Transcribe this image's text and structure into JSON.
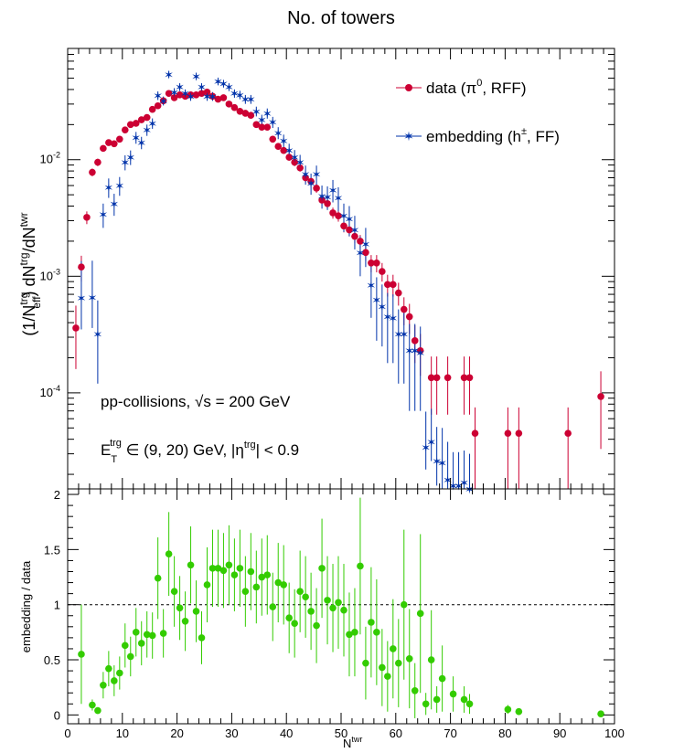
{
  "title": "No. of towers",
  "colors": {
    "data": "#cc0033",
    "embedding": "#0033aa",
    "ratio": "#33cc00"
  },
  "chart_data": [
    {
      "type": "scatter",
      "title": "No. of towers",
      "xlabel_parts": {
        "base": "N",
        "sup": "twr"
      },
      "ylabel_parts": {
        "a": "(1/N",
        "a_sup": "trg",
        "a_sub": "eff",
        "b": ") dN",
        "b_sup": "trg",
        "c": "/dN",
        "c_sup": "twr"
      },
      "xlim": [
        0,
        100
      ],
      "ylim": [
        1.5e-05,
        0.09
      ],
      "yscale": "log",
      "y_ticks": [
        {
          "base": "10",
          "exp": "-2"
        },
        {
          "base": "10",
          "exp": "-3"
        },
        {
          "base": "10",
          "exp": "-4"
        }
      ],
      "legend_position": "top-right",
      "annotations": {
        "line1_prefix": "pp-collisions, ",
        "line1_sqrt": "√s",
        "line1_suffix": " = 200 GeV",
        "line2_a": "E",
        "line2_a_sub": "T",
        "line2_a_sup": "trg",
        "line2_b": " ∈ (9, 20) GeV, |η",
        "line2_b_sup": "trg",
        "line2_c": "| < 0.9"
      },
      "series": [
        {
          "name": "data (π⁰, RFF)",
          "legend_parts": {
            "a": "data (π",
            "sup": "0",
            "b": ", RFF)"
          },
          "x": [
            1.5,
            2.5,
            3.5,
            4.5,
            5.5,
            6.5,
            7.5,
            8.5,
            9.5,
            10.5,
            11.5,
            12.5,
            13.5,
            14.5,
            15.5,
            16.5,
            17.5,
            18.5,
            19.5,
            20.5,
            21.5,
            22.5,
            23.5,
            24.5,
            25.5,
            26.5,
            27.5,
            28.5,
            29.5,
            30.5,
            31.5,
            32.5,
            33.5,
            34.5,
            35.5,
            36.5,
            37.5,
            38.5,
            39.5,
            40.5,
            41.5,
            42.5,
            43.5,
            44.5,
            45.5,
            46.5,
            47.5,
            48.5,
            49.5,
            50.5,
            51.5,
            52.5,
            53.5,
            54.5,
            55.5,
            56.5,
            57.5,
            58.5,
            59.5,
            60.5,
            61.5,
            62.5,
            63.5,
            64.5,
            66.5,
            67.5,
            69.5,
            72.5,
            73.5,
            74.5,
            80.5,
            82.5,
            91.5,
            97.5
          ],
          "y": [
            0.00036,
            0.0012,
            0.0032,
            0.0078,
            0.0095,
            0.0125,
            0.014,
            0.0137,
            0.015,
            0.018,
            0.02,
            0.0205,
            0.022,
            0.023,
            0.027,
            0.029,
            0.032,
            0.037,
            0.034,
            0.036,
            0.035,
            0.036,
            0.036,
            0.037,
            0.038,
            0.035,
            0.033,
            0.034,
            0.03,
            0.028,
            0.026,
            0.025,
            0.024,
            0.02,
            0.019,
            0.019,
            0.015,
            0.013,
            0.012,
            0.0105,
            0.0095,
            0.0085,
            0.007,
            0.0065,
            0.0057,
            0.0045,
            0.0042,
            0.0035,
            0.0033,
            0.0027,
            0.0025,
            0.0022,
            0.002,
            0.0016,
            0.0013,
            0.0013,
            0.0011,
            0.00085,
            0.00085,
            0.00072,
            0.00052,
            0.00045,
            0.00028,
            0.00023,
            0.000135,
            0.000135,
            0.000135,
            0.000135,
            0.000135,
            4.5e-05,
            4.5e-05,
            4.5e-05,
            4.5e-05,
            9.3e-05
          ],
          "err_lo": [
            0.0002,
            0.0003,
            0.0004,
            0.0006,
            0.0007,
            0.0008,
            0.0008,
            0.0008,
            0.0008,
            0.0009,
            0.001,
            0.001,
            0.001,
            0.001,
            0.0012,
            0.0012,
            0.0013,
            0.0014,
            0.0014,
            0.0014,
            0.0014,
            0.0014,
            0.0014,
            0.0014,
            0.0014,
            0.0014,
            0.0013,
            0.0013,
            0.0013,
            0.0012,
            0.0012,
            0.0011,
            0.0011,
            0.001,
            0.001,
            0.001,
            0.0009,
            0.0008,
            0.0008,
            0.0007,
            0.0007,
            0.0006,
            0.0006,
            0.0005,
            0.0005,
            0.00045,
            0.00042,
            0.00038,
            0.00036,
            0.00032,
            0.0003,
            0.00028,
            0.00026,
            0.00024,
            0.00022,
            0.00022,
            0.0002,
            0.00018,
            0.00018,
            0.00016,
            0.00014,
            0.00013,
            0.0001,
            9e-05,
            7e-05,
            7e-05,
            7e-05,
            7e-05,
            7e-05,
            3e-05,
            3e-05,
            3e-05,
            3e-05,
            6e-05
          ],
          "err_hi": [
            0.0002,
            0.0003,
            0.0004,
            0.0006,
            0.0007,
            0.0008,
            0.0008,
            0.0008,
            0.0008,
            0.0009,
            0.001,
            0.001,
            0.001,
            0.001,
            0.0012,
            0.0012,
            0.0013,
            0.0014,
            0.0014,
            0.0014,
            0.0014,
            0.0014,
            0.0014,
            0.0014,
            0.0014,
            0.0014,
            0.0013,
            0.0013,
            0.0013,
            0.0012,
            0.0012,
            0.0011,
            0.0011,
            0.001,
            0.001,
            0.001,
            0.0009,
            0.0008,
            0.0008,
            0.0007,
            0.0007,
            0.0006,
            0.0006,
            0.0005,
            0.0005,
            0.00045,
            0.00042,
            0.00038,
            0.00036,
            0.00032,
            0.0003,
            0.00028,
            0.00026,
            0.00024,
            0.00022,
            0.00022,
            0.0002,
            0.00018,
            0.00018,
            0.00016,
            0.00014,
            0.00013,
            0.0001,
            9e-05,
            7e-05,
            7e-05,
            7e-05,
            7e-05,
            7e-05,
            3e-05,
            3e-05,
            3e-05,
            3e-05,
            6e-05
          ]
        },
        {
          "name": "embedding (h±, FF)",
          "legend_parts": {
            "a": "embedding (h",
            "sup": "±",
            "b": ", FF)"
          },
          "x": [
            2.5,
            4.5,
            5.5,
            6.5,
            7.5,
            8.5,
            9.5,
            10.5,
            11.5,
            12.5,
            13.5,
            14.5,
            15.5,
            16.5,
            17.5,
            18.5,
            19.5,
            20.5,
            21.5,
            22.5,
            23.5,
            24.5,
            25.5,
            26.5,
            27.5,
            28.5,
            29.5,
            30.5,
            31.5,
            32.5,
            33.5,
            34.5,
            35.5,
            36.5,
            37.5,
            38.5,
            39.5,
            40.5,
            41.5,
            42.5,
            43.5,
            44.5,
            45.5,
            46.5,
            47.5,
            48.5,
            49.5,
            50.5,
            51.5,
            52.5,
            53.5,
            54.5,
            55.5,
            56.5,
            57.5,
            58.5,
            59.5,
            60.5,
            61.5,
            62.5,
            63.5,
            64.5,
            65.5,
            66.5,
            67.5,
            68.5,
            69.5,
            70.5,
            71.5,
            72.5,
            73.5
          ],
          "y": [
            0.00065,
            0.00066,
            0.00032,
            0.0034,
            0.0058,
            0.0042,
            0.006,
            0.0095,
            0.0105,
            0.0155,
            0.014,
            0.018,
            0.0205,
            0.0355,
            0.032,
            0.054,
            0.038,
            0.042,
            0.037,
            0.035,
            0.052,
            0.042,
            0.035,
            0.035,
            0.047,
            0.045,
            0.042,
            0.037,
            0.036,
            0.033,
            0.033,
            0.026,
            0.022,
            0.025,
            0.021,
            0.017,
            0.0145,
            0.012,
            0.0105,
            0.0095,
            0.0075,
            0.0063,
            0.0075,
            0.0049,
            0.0048,
            0.0055,
            0.0047,
            0.0033,
            0.0031,
            0.0025,
            0.0016,
            0.0019,
            0.00084,
            0.00063,
            0.00055,
            0.00045,
            0.00044,
            0.00032,
            0.00032,
            0.00023,
            0.00023,
            0.00022,
            3.4e-05,
            3.8e-05,
            2.6e-05,
            2.5e-05,
            1.8e-05,
            1.6e-05,
            1.6e-05,
            1.7e-05,
            1.5e-05
          ],
          "err_lo": [
            0.0003,
            0.0003,
            0.0002,
            0.0008,
            0.0011,
            0.0009,
            0.0011,
            0.0014,
            0.0015,
            0.0018,
            0.0017,
            0.002,
            0.0021,
            0.003,
            0.0028,
            0.0037,
            0.0031,
            0.0032,
            0.003,
            0.003,
            0.0036,
            0.0032,
            0.003,
            0.003,
            0.0034,
            0.0033,
            0.0032,
            0.003,
            0.003,
            0.0029,
            0.0029,
            0.0025,
            0.0023,
            0.0025,
            0.0023,
            0.002,
            0.0019,
            0.0017,
            0.0016,
            0.0015,
            0.0014,
            0.0013,
            0.0014,
            0.0011,
            0.0011,
            0.0012,
            0.0011,
            0.0009,
            0.0009,
            0.0008,
            0.0006,
            0.0007,
            0.0004,
            0.00035,
            0.0003,
            0.00027,
            0.00026,
            0.0002,
            0.0002,
            0.00016,
            0.00016,
            0.00015,
            1.2e-05,
            1.2e-05,
            1e-05,
            1e-05,
            8e-06,
            6e-06,
            6e-06,
            6e-06,
            5e-06
          ],
          "err_hi": [
            0.0007,
            0.0007,
            0.0003,
            0.0008,
            0.0011,
            0.0009,
            0.0011,
            0.0014,
            0.0015,
            0.0018,
            0.0017,
            0.002,
            0.0021,
            0.003,
            0.0028,
            0.0037,
            0.0031,
            0.0032,
            0.003,
            0.003,
            0.0036,
            0.0032,
            0.003,
            0.003,
            0.0034,
            0.0033,
            0.0032,
            0.003,
            0.003,
            0.0029,
            0.0029,
            0.0025,
            0.0023,
            0.0025,
            0.0023,
            0.002,
            0.0019,
            0.0017,
            0.0016,
            0.0015,
            0.0014,
            0.0013,
            0.0014,
            0.0011,
            0.0011,
            0.0012,
            0.0011,
            0.0009,
            0.0009,
            0.0008,
            0.0006,
            0.0007,
            0.0004,
            0.00035,
            0.0003,
            0.00027,
            0.00026,
            0.0002,
            0.0002,
            0.00016,
            0.00016,
            0.00015,
            3.5e-05,
            3.5e-05,
            2.5e-05,
            2.5e-05,
            2e-05,
            1.5e-05,
            1.5e-05,
            1.5e-05,
            1.5e-05
          ]
        }
      ]
    },
    {
      "type": "scatter",
      "xlabel_parts": {
        "base": "N",
        "sup": "twr"
      },
      "ylabel": "embedding / data",
      "xlim": [
        0,
        100
      ],
      "ylim": [
        -0.08,
        2.05
      ],
      "x_ticks": [
        "0",
        "10",
        "20",
        "30",
        "40",
        "50",
        "60",
        "70",
        "80",
        "90",
        "100"
      ],
      "y_ticks": [
        "0",
        "0.5",
        "1",
        "1.5",
        "2"
      ],
      "reference_line": 1,
      "series": [
        {
          "name": "",
          "x": [
            2.5,
            4.5,
            5.5,
            6.5,
            7.5,
            8.5,
            9.5,
            10.5,
            11.5,
            12.5,
            13.5,
            14.5,
            15.5,
            16.5,
            17.5,
            18.5,
            19.5,
            20.5,
            21.5,
            22.5,
            23.5,
            24.5,
            25.5,
            26.5,
            27.5,
            28.5,
            29.5,
            30.5,
            31.5,
            32.5,
            33.5,
            34.5,
            35.5,
            36.5,
            37.5,
            38.5,
            39.5,
            40.5,
            41.5,
            42.5,
            43.5,
            44.5,
            45.5,
            46.5,
            47.5,
            48.5,
            49.5,
            50.5,
            51.5,
            52.5,
            53.5,
            54.5,
            55.5,
            56.5,
            57.5,
            58.5,
            59.5,
            60.5,
            61.5,
            62.5,
            63.5,
            64.5,
            65.5,
            66.5,
            67.5,
            68.5,
            70.5,
            72.5,
            73.5,
            80.5,
            82.5,
            97.5
          ],
          "y": [
            0.55,
            0.09,
            0.04,
            0.27,
            0.42,
            0.31,
            0.38,
            0.63,
            0.53,
            0.75,
            0.65,
            0.73,
            0.72,
            1.24,
            0.74,
            1.46,
            1.12,
            0.97,
            0.85,
            1.36,
            0.94,
            0.7,
            1.18,
            1.33,
            1.33,
            1.31,
            1.36,
            1.27,
            1.33,
            1.12,
            1.3,
            1.16,
            1.25,
            1.27,
            0.98,
            1.2,
            1.18,
            0.88,
            0.83,
            1.12,
            1.07,
            0.94,
            0.81,
            1.33,
            1.04,
            0.97,
            1.02,
            0.95,
            0.73,
            0.75,
            1.35,
            0.47,
            0.84,
            0.75,
            0.43,
            0.35,
            0.6,
            0.47,
            1.0,
            0.51,
            0.22,
            0.92,
            0.1,
            0.5,
            0.14,
            0.33,
            0.19,
            0.14,
            0.1,
            0.05,
            0.03,
            0.01
          ],
          "err": [
            0.45,
            0.05,
            0.03,
            0.12,
            0.16,
            0.14,
            0.15,
            0.2,
            0.18,
            0.22,
            0.2,
            0.21,
            0.21,
            0.37,
            0.22,
            0.38,
            0.32,
            0.29,
            0.27,
            0.35,
            0.28,
            0.24,
            0.34,
            0.35,
            0.35,
            0.34,
            0.36,
            0.33,
            0.35,
            0.32,
            0.35,
            0.33,
            0.35,
            0.36,
            0.31,
            0.36,
            0.36,
            0.32,
            0.31,
            0.37,
            0.37,
            0.35,
            0.34,
            0.45,
            0.4,
            0.4,
            0.42,
            0.42,
            0.38,
            0.4,
            0.62,
            0.33,
            0.5,
            0.48,
            0.35,
            0.32,
            0.45,
            0.4,
            0.68,
            0.45,
            0.25,
            0.72,
            0.1,
            0.45,
            0.12,
            0.3,
            0.16,
            0.12,
            0.09,
            0.04,
            0.03,
            0.01
          ]
        }
      ]
    }
  ]
}
